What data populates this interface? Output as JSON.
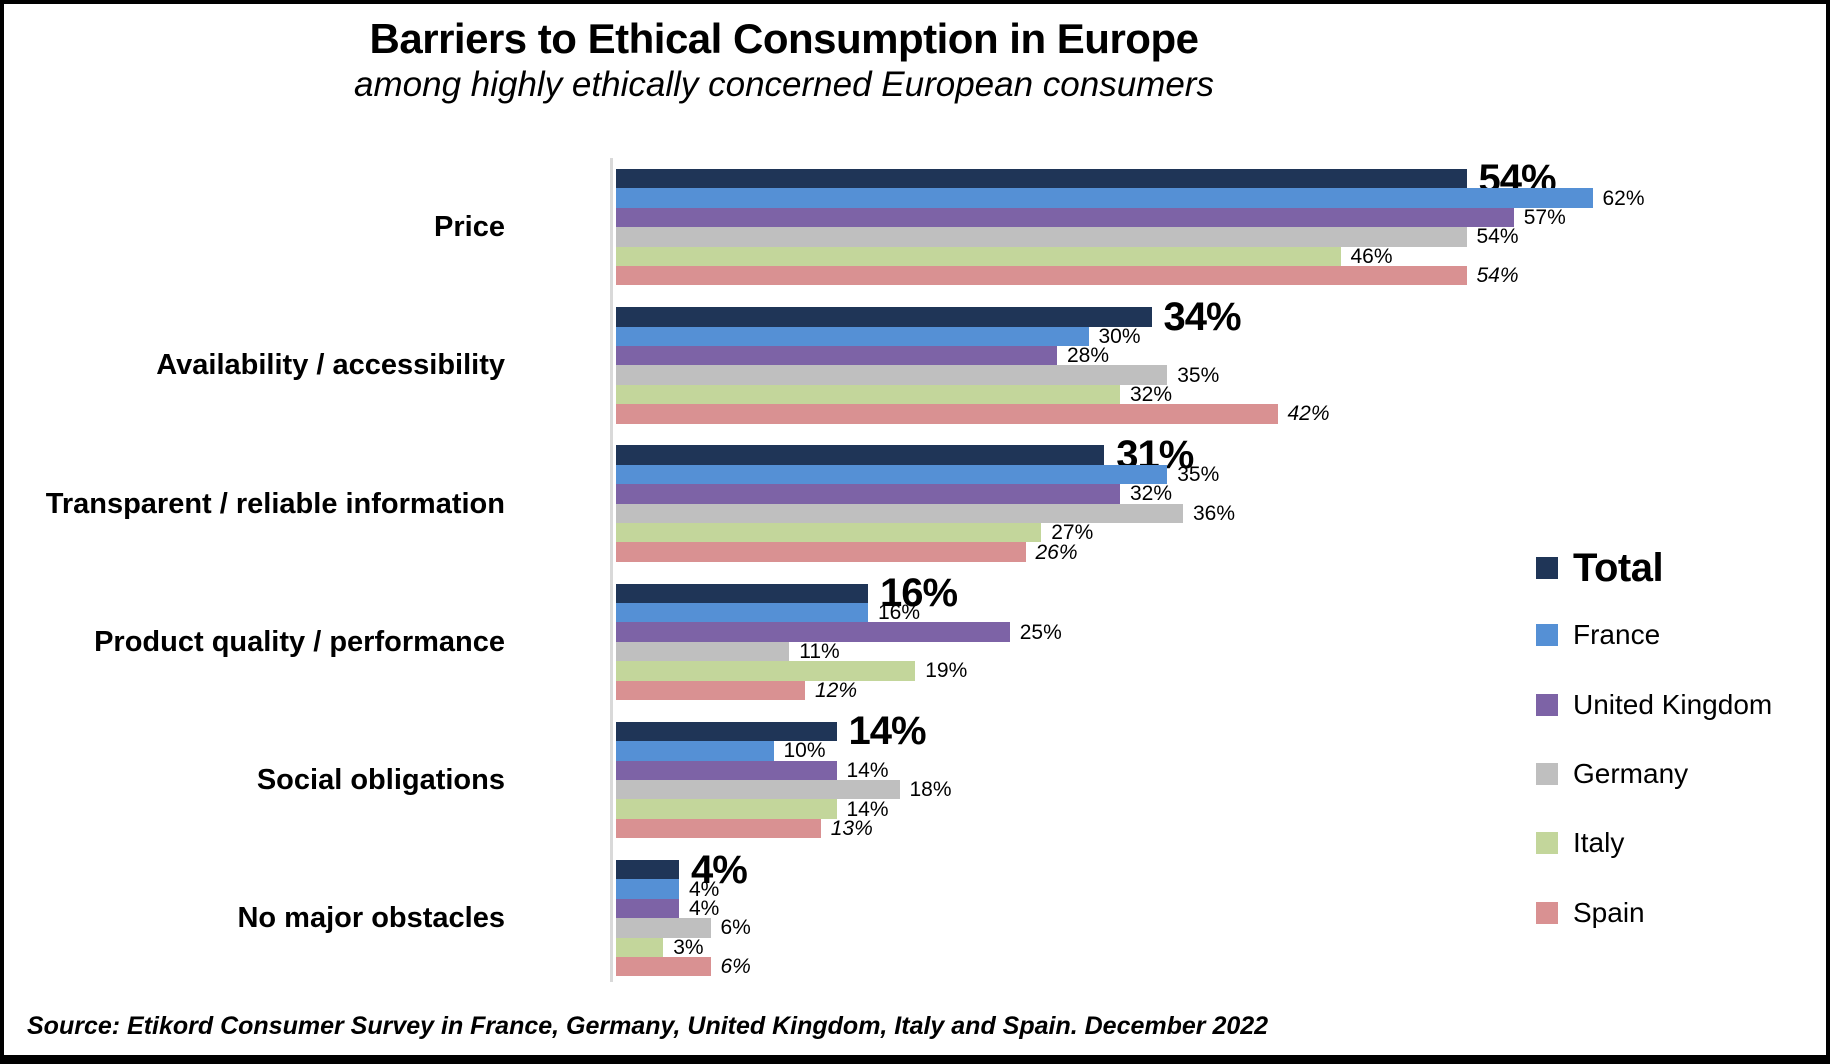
{
  "chart_data": {
    "type": "bar",
    "orientation": "horizontal",
    "title": "Barriers to Ethical Consumption in Europe",
    "subtitle": "among highly ethically concerned European consumers",
    "source": "Source: Etikord Consumer Survey in France, Germany, United Kingdom, Italy and Spain. December 2022",
    "unit": "%",
    "categories": [
      "Price",
      "Availability / accessibility",
      "Transparent / reliable information",
      "Product quality / performance",
      "Social obligations",
      "No major obstacles"
    ],
    "series": [
      {
        "name": "Total",
        "color": "#1F3557",
        "emphasis": true,
        "values": [
          54,
          34,
          31,
          16,
          14,
          4
        ]
      },
      {
        "name": "France",
        "color": "#5590D5",
        "values": [
          62,
          30,
          35,
          16,
          10,
          4
        ]
      },
      {
        "name": "United Kingdom",
        "color": "#7D63A6",
        "values": [
          57,
          28,
          32,
          25,
          14,
          4
        ]
      },
      {
        "name": "Germany",
        "color": "#BFBFBF",
        "values": [
          54,
          35,
          36,
          11,
          18,
          6
        ]
      },
      {
        "name": "Italy",
        "color": "#C3D69B",
        "values": [
          46,
          32,
          27,
          19,
          14,
          3
        ]
      },
      {
        "name": "Spain",
        "color": "#D99192",
        "italic_labels": true,
        "values": [
          54,
          42,
          26,
          12,
          13,
          6
        ]
      }
    ],
    "value_labels": "shown at end of every bar",
    "axis": {
      "x_min": 0,
      "x_max_visible": 77,
      "gridlines": false,
      "axis_line_color": "#D9D9D9"
    },
    "legend_position": "right"
  }
}
